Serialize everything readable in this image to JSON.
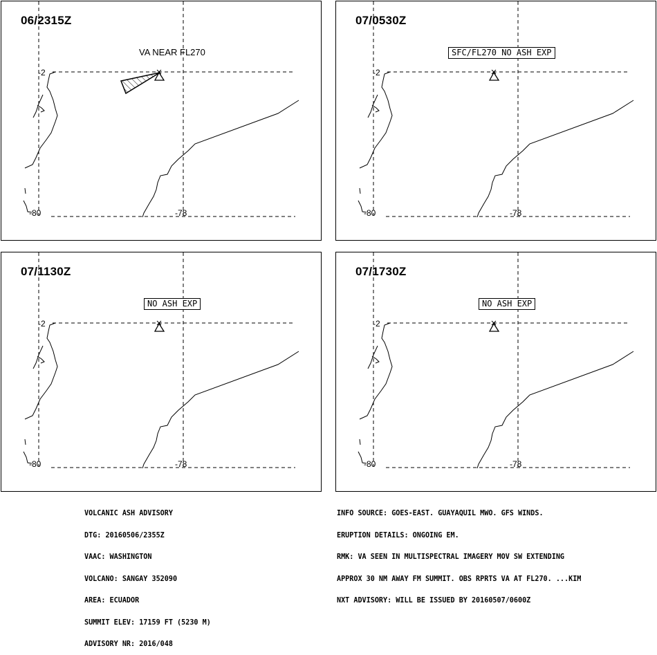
{
  "panels": [
    {
      "time": "06/2315Z",
      "ash_label": "VA NEAR FL270",
      "ash_label_boxed": false,
      "has_ash_polygon": true
    },
    {
      "time": "07/0530Z",
      "ash_label": "SFC/FL270 NO ASH EXP",
      "ash_label_boxed": true,
      "has_ash_polygon": false
    },
    {
      "time": "07/1130Z",
      "ash_label": "NO ASH EXP",
      "ash_label_boxed": true,
      "has_ash_polygon": false
    },
    {
      "time": "07/1730Z",
      "ash_label": "NO ASH EXP",
      "ash_label_boxed": true,
      "has_ash_polygon": false
    }
  ],
  "grid_labels": {
    "lat": "-2",
    "lon_west": "-80",
    "lon_east": "-78"
  },
  "map_icons": {
    "volcano": "volcano-triangle-icon",
    "ash_area": "hatched-ash-polygon"
  },
  "info_left": {
    "header": "VOLCANIC ASH ADVISORY",
    "dtg": "DTG: 20160506/2355Z",
    "vaac": "VAAC: WASHINGTON",
    "volcano": "VOLCANO: SANGAY 352090",
    "area": "AREA: ECUADOR",
    "summit": "SUMMIT ELEV: 17159 FT (5230 M)",
    "advisory_nr": "ADVISORY NR: 2016/048"
  },
  "info_right": {
    "info_source": "INFO SOURCE: GOES-EAST. GUAYAQUIL MWO. GFS WINDS.",
    "eruption_details": "ERUPTION DETAILS: ONGOING EM.",
    "rmk_1": "RMK: VA SEEN IN MULTISPECTRAL IMAGERY MOV SW EXTENDING",
    "rmk_2": "APPROX 30 NM AWAY FM SUMMIT. OBS RPRTS VA AT FL270. ...KIM",
    "next_advisory": "NXT ADVISORY: WILL BE ISSUED BY 20160507/0600Z"
  }
}
